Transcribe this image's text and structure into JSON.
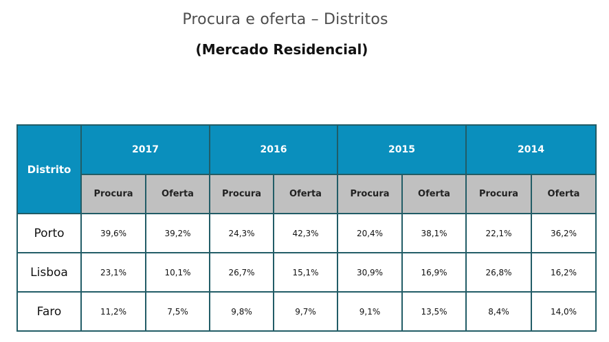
{
  "title": "Procura e oferta – Distritos",
  "subtitle": "(Mercado Residencial)",
  "table": {
    "distrito_header": "Distrito",
    "years": [
      "2017",
      "2016",
      "2015",
      "2014"
    ],
    "sub_headers": {
      "procura": "Procura",
      "oferta": "Oferta"
    },
    "rows": [
      {
        "name": "Porto",
        "values": [
          "39,6%",
          "39,2%",
          "24,3%",
          "42,3%",
          "20,4%",
          "38,1%",
          "22,1%",
          "36,2%"
        ]
      },
      {
        "name": "Lisboa",
        "values": [
          "23,1%",
          "10,1%",
          "26,7%",
          "15,1%",
          "30,9%",
          "16,9%",
          "26,8%",
          "16,2%"
        ]
      },
      {
        "name": "Faro",
        "values": [
          "11,2%",
          "7,5%",
          "9,8%",
          "9,7%",
          "9,1%",
          "13,5%",
          "8,4%",
          "14,0%"
        ]
      }
    ]
  },
  "colors": {
    "header_blue": "#0a8fbd",
    "subheader_grey": "#c0c0c0",
    "border": "#215c66"
  }
}
